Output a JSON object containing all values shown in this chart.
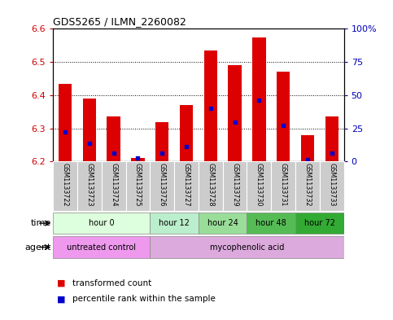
{
  "title": "GDS5265 / ILMN_2260082",
  "samples": [
    "GSM1133722",
    "GSM1133723",
    "GSM1133724",
    "GSM1133725",
    "GSM1133726",
    "GSM1133727",
    "GSM1133728",
    "GSM1133729",
    "GSM1133730",
    "GSM1133731",
    "GSM1133732",
    "GSM1133733"
  ],
  "bar_tops": [
    6.435,
    6.39,
    6.335,
    6.21,
    6.32,
    6.37,
    6.535,
    6.49,
    6.575,
    6.47,
    6.28,
    6.335
  ],
  "bar_bottoms": [
    6.2,
    6.2,
    6.2,
    6.2,
    6.2,
    6.2,
    6.2,
    6.2,
    6.2,
    6.2,
    6.2,
    6.2
  ],
  "blue_marks": [
    6.29,
    6.255,
    6.225,
    6.21,
    6.225,
    6.245,
    6.36,
    6.32,
    6.385,
    6.31,
    6.205,
    6.225
  ],
  "ylim": [
    6.2,
    6.6
  ],
  "yticks": [
    6.2,
    6.3,
    6.4,
    6.5,
    6.6
  ],
  "right_yticks": [
    0,
    25,
    50,
    75,
    100
  ],
  "right_ytick_labels": [
    "0",
    "25",
    "50",
    "75",
    "100%"
  ],
  "bar_color": "#dd0000",
  "blue_color": "#0000cc",
  "time_groups": [
    {
      "label": "hour 0",
      "start": 0,
      "end": 4,
      "color": "#ddffdd"
    },
    {
      "label": "hour 12",
      "start": 4,
      "end": 6,
      "color": "#bbeecc"
    },
    {
      "label": "hour 24",
      "start": 6,
      "end": 8,
      "color": "#99dd99"
    },
    {
      "label": "hour 48",
      "start": 8,
      "end": 10,
      "color": "#55bb55"
    },
    {
      "label": "hour 72",
      "start": 10,
      "end": 12,
      "color": "#33aa33"
    }
  ],
  "agent_groups": [
    {
      "label": "untreated control",
      "start": 0,
      "end": 4,
      "color": "#ee99ee"
    },
    {
      "label": "mycophenolic acid",
      "start": 4,
      "end": 12,
      "color": "#ddaadd"
    }
  ],
  "legend_items": [
    {
      "label": "transformed count",
      "color": "#dd0000"
    },
    {
      "label": "percentile rank within the sample",
      "color": "#0000cc"
    }
  ],
  "ylabel_color": "#cc0000",
  "ylabel2_color": "#0000bb",
  "sample_bg": "#cccccc"
}
